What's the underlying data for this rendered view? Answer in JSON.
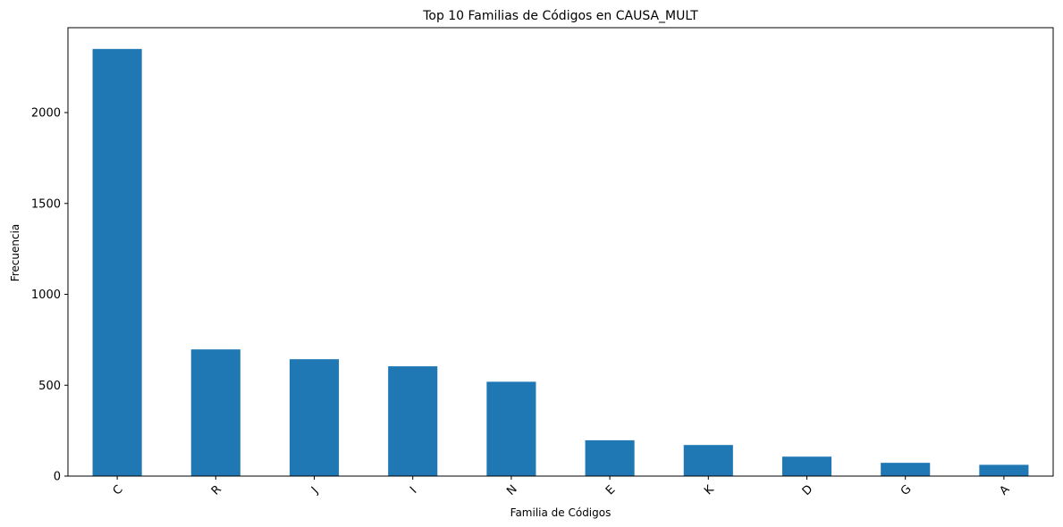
{
  "chart_data": {
    "type": "bar",
    "title": "Top 10 Familias de Códigos en CAUSA_MULT",
    "xlabel": "Familia de Códigos",
    "ylabel": "Frecuencia",
    "categories": [
      "C",
      "R",
      "J",
      "I",
      "N",
      "E",
      "K",
      "D",
      "G",
      "A"
    ],
    "values": [
      2350,
      697,
      643,
      604,
      519,
      197,
      171,
      107,
      73,
      62
    ],
    "ylim": [
      0,
      2467
    ],
    "yticks": [
      0,
      500,
      1000,
      1500,
      2000
    ],
    "grid": false,
    "bar_color": "#1f77b4"
  }
}
